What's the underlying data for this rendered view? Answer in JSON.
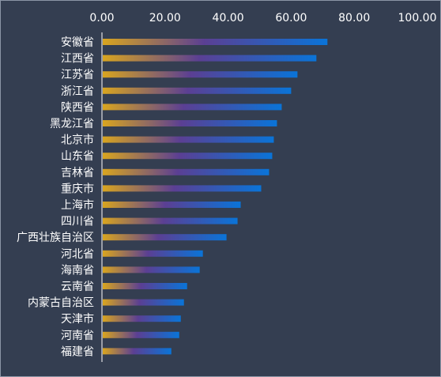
{
  "chart_data": {
    "type": "bar",
    "orientation": "horizontal",
    "xlim": [
      0,
      100
    ],
    "xticks": [
      "0.00",
      "20.00",
      "40.00",
      "60.00",
      "80.00",
      "100.00"
    ],
    "x_axis_position": "top",
    "grid": false,
    "legend": "none",
    "categories": [
      "安徽省",
      "江西省",
      "江苏省",
      "浙江省",
      "陕西省",
      "黑龙江省",
      "北京市",
      "山东省",
      "吉林省",
      "重庆市",
      "上海市",
      "四川省",
      "广西壮族自治区",
      "河北省",
      "海南省",
      "云南省",
      "内蒙古自治区",
      "天津市",
      "河南省",
      "福建省"
    ],
    "values": [
      71.5,
      68,
      62,
      60,
      57,
      55.5,
      54.5,
      54,
      53,
      50.5,
      44,
      43,
      39.5,
      32,
      31,
      27,
      26,
      25,
      24.5,
      22
    ],
    "colors": {
      "background": "#343e51",
      "text": "#ffffff",
      "axis": "#ffffff",
      "bar_gradient": [
        "#d9a51f",
        "#5b3f93",
        "#0a74d8"
      ]
    }
  }
}
